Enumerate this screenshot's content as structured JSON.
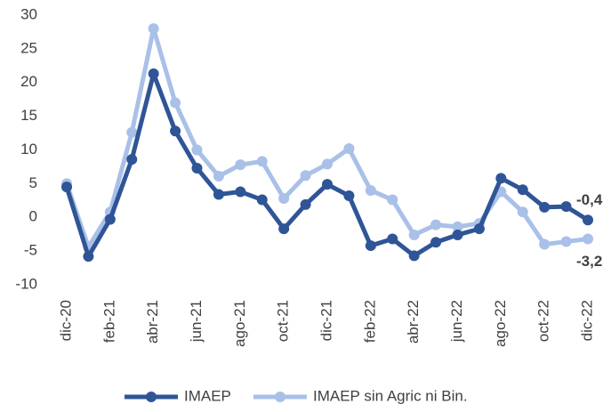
{
  "chart_data": {
    "type": "line",
    "categories": [
      "dic-20",
      null,
      "feb-21",
      null,
      "abr-21",
      null,
      "jun-21",
      null,
      "ago-21",
      null,
      "oct-21",
      null,
      "dic-21",
      null,
      "feb-22",
      null,
      "abr-22",
      null,
      "jun-22",
      null,
      "ago-22",
      null,
      "oct-22",
      null,
      "dic-22"
    ],
    "series": [
      {
        "name": "IMAEP",
        "color": "#2f5597",
        "values": [
          4.5,
          -5.8,
          -0.3,
          8.6,
          21.3,
          12.8,
          7.3,
          3.4,
          3.8,
          2.6,
          -1.7,
          1.9,
          4.9,
          3.2,
          -4.2,
          -3.2,
          -5.7,
          -3.7,
          -2.6,
          -1.7,
          5.8,
          4.1,
          1.5,
          1.6,
          -0.4
        ],
        "value_labels": [
          null,
          null,
          null,
          null,
          null,
          null,
          null,
          null,
          null,
          null,
          null,
          null,
          null,
          null,
          null,
          null,
          null,
          null,
          null,
          null,
          null,
          null,
          null,
          null,
          "-0,4"
        ]
      },
      {
        "name": "IMAEP sin Agric ni Bin.",
        "color": "#a9c0e8",
        "values": [
          5.0,
          -4.4,
          0.8,
          12.6,
          28.0,
          17.0,
          10.0,
          6.1,
          7.8,
          8.3,
          2.8,
          6.2,
          7.9,
          10.2,
          4.0,
          2.6,
          -2.6,
          -1.1,
          -1.4,
          -0.9,
          3.8,
          0.8,
          -4.0,
          -3.6,
          -3.2
        ],
        "value_labels": [
          null,
          null,
          null,
          null,
          null,
          null,
          null,
          null,
          null,
          null,
          null,
          null,
          null,
          null,
          null,
          null,
          null,
          null,
          null,
          null,
          null,
          null,
          null,
          null,
          "-3,2"
        ]
      }
    ],
    "ylim": [
      -10,
      30
    ],
    "yticks": [
      -10,
      -5,
      0,
      5,
      10,
      15,
      20,
      25,
      30
    ],
    "legend": "bottom"
  }
}
